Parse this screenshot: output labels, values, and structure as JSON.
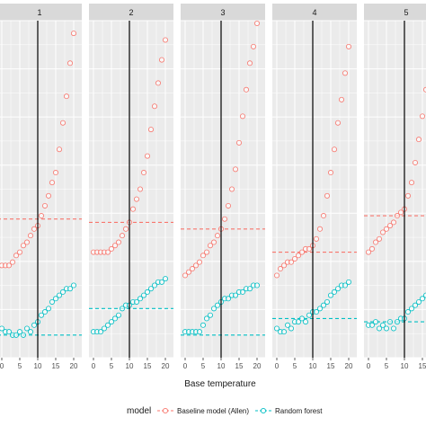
{
  "chart_data": {
    "type": "scatter",
    "xlabel": "Base temperature",
    "xlim": [
      0,
      21
    ],
    "x_ticks": [
      "0",
      "5",
      "10",
      "15",
      "20"
    ],
    "ylim": [
      0,
      1
    ],
    "legend": {
      "title": "model",
      "placement": "bottom"
    },
    "grid": true,
    "colors": {
      "baseline": "#f8766d",
      "random_forest": "#00bfc4",
      "strip_bg": "#d9d9d9",
      "panel_bg": "#ebebeb",
      "vline": "#000000"
    },
    "vline_x": 10,
    "series_names": [
      "Baseline model (Allen)",
      "Random forest"
    ],
    "facets": [
      {
        "label": "1",
        "baseline_hline": 0.41,
        "rf_hline": 0.06,
        "baseline": [
          [
            0,
            0.27
          ],
          [
            1,
            0.27
          ],
          [
            2,
            0.27
          ],
          [
            3,
            0.28
          ],
          [
            4,
            0.3
          ],
          [
            5,
            0.31
          ],
          [
            6,
            0.33
          ],
          [
            7,
            0.34
          ],
          [
            8,
            0.36
          ],
          [
            9,
            0.38
          ],
          [
            10,
            0.39
          ],
          [
            11,
            0.42
          ],
          [
            12,
            0.45
          ],
          [
            13,
            0.48
          ],
          [
            14,
            0.52
          ],
          [
            15,
            0.55
          ],
          [
            16,
            0.62
          ],
          [
            17,
            0.7
          ],
          [
            18,
            0.78
          ],
          [
            19,
            0.88
          ],
          [
            20,
            0.97
          ]
        ],
        "random_forest": [
          [
            0,
            0.08
          ],
          [
            1,
            0.07
          ],
          [
            2,
            0.07
          ],
          [
            3,
            0.06
          ],
          [
            4,
            0.06
          ],
          [
            5,
            0.07
          ],
          [
            6,
            0.06
          ],
          [
            7,
            0.08
          ],
          [
            8,
            0.07
          ],
          [
            9,
            0.09
          ],
          [
            10,
            0.1
          ],
          [
            11,
            0.12
          ],
          [
            12,
            0.13
          ],
          [
            13,
            0.14
          ],
          [
            14,
            0.16
          ],
          [
            15,
            0.17
          ],
          [
            16,
            0.18
          ],
          [
            17,
            0.19
          ],
          [
            18,
            0.2
          ],
          [
            19,
            0.2
          ],
          [
            20,
            0.21
          ]
        ]
      },
      {
        "label": "2",
        "baseline_hline": 0.4,
        "rf_hline": 0.14,
        "baseline": [
          [
            0,
            0.31
          ],
          [
            1,
            0.31
          ],
          [
            2,
            0.31
          ],
          [
            3,
            0.31
          ],
          [
            4,
            0.31
          ],
          [
            5,
            0.32
          ],
          [
            6,
            0.33
          ],
          [
            7,
            0.34
          ],
          [
            8,
            0.36
          ],
          [
            9,
            0.38
          ],
          [
            10,
            0.4
          ],
          [
            11,
            0.44
          ],
          [
            12,
            0.47
          ],
          [
            13,
            0.5
          ],
          [
            14,
            0.55
          ],
          [
            15,
            0.6
          ],
          [
            16,
            0.68
          ],
          [
            17,
            0.75
          ],
          [
            18,
            0.82
          ],
          [
            19,
            0.89
          ],
          [
            20,
            0.95
          ]
        ],
        "random_forest": [
          [
            0,
            0.07
          ],
          [
            1,
            0.07
          ],
          [
            2,
            0.07
          ],
          [
            3,
            0.08
          ],
          [
            4,
            0.09
          ],
          [
            5,
            0.1
          ],
          [
            6,
            0.11
          ],
          [
            7,
            0.12
          ],
          [
            8,
            0.14
          ],
          [
            9,
            0.15
          ],
          [
            10,
            0.15
          ],
          [
            11,
            0.16
          ],
          [
            12,
            0.16
          ],
          [
            13,
            0.17
          ],
          [
            14,
            0.18
          ],
          [
            15,
            0.19
          ],
          [
            16,
            0.2
          ],
          [
            17,
            0.21
          ],
          [
            18,
            0.22
          ],
          [
            19,
            0.22
          ],
          [
            20,
            0.23
          ]
        ]
      },
      {
        "label": "3",
        "baseline_hline": 0.38,
        "rf_hline": 0.06,
        "baseline": [
          [
            0,
            0.24
          ],
          [
            1,
            0.25
          ],
          [
            2,
            0.26
          ],
          [
            3,
            0.27
          ],
          [
            4,
            0.28
          ],
          [
            5,
            0.3
          ],
          [
            6,
            0.31
          ],
          [
            7,
            0.33
          ],
          [
            8,
            0.34
          ],
          [
            9,
            0.36
          ],
          [
            10,
            0.38
          ],
          [
            11,
            0.41
          ],
          [
            12,
            0.45
          ],
          [
            13,
            0.5
          ],
          [
            14,
            0.56
          ],
          [
            15,
            0.64
          ],
          [
            16,
            0.72
          ],
          [
            17,
            0.8
          ],
          [
            18,
            0.88
          ],
          [
            19,
            0.93
          ],
          [
            20,
            1.0
          ]
        ],
        "random_forest": [
          [
            0,
            0.07
          ],
          [
            1,
            0.07
          ],
          [
            2,
            0.07
          ],
          [
            3,
            0.07
          ],
          [
            4,
            0.07
          ],
          [
            5,
            0.09
          ],
          [
            6,
            0.11
          ],
          [
            7,
            0.12
          ],
          [
            8,
            0.14
          ],
          [
            9,
            0.15
          ],
          [
            10,
            0.16
          ],
          [
            11,
            0.17
          ],
          [
            12,
            0.17
          ],
          [
            13,
            0.18
          ],
          [
            14,
            0.18
          ],
          [
            15,
            0.19
          ],
          [
            16,
            0.19
          ],
          [
            17,
            0.2
          ],
          [
            18,
            0.2
          ],
          [
            19,
            0.21
          ],
          [
            20,
            0.21
          ]
        ]
      },
      {
        "label": "4",
        "baseline_hline": 0.31,
        "rf_hline": 0.11,
        "baseline": [
          [
            0,
            0.24
          ],
          [
            1,
            0.26
          ],
          [
            2,
            0.27
          ],
          [
            3,
            0.28
          ],
          [
            4,
            0.28
          ],
          [
            5,
            0.29
          ],
          [
            6,
            0.3
          ],
          [
            7,
            0.31
          ],
          [
            8,
            0.32
          ],
          [
            9,
            0.32
          ],
          [
            10,
            0.33
          ],
          [
            11,
            0.35
          ],
          [
            12,
            0.38
          ],
          [
            13,
            0.42
          ],
          [
            14,
            0.48
          ],
          [
            15,
            0.55
          ],
          [
            16,
            0.62
          ],
          [
            17,
            0.7
          ],
          [
            18,
            0.77
          ],
          [
            19,
            0.85
          ],
          [
            20,
            0.93
          ]
        ],
        "random_forest": [
          [
            0,
            0.08
          ],
          [
            1,
            0.07
          ],
          [
            2,
            0.07
          ],
          [
            3,
            0.09
          ],
          [
            4,
            0.08
          ],
          [
            5,
            0.1
          ],
          [
            6,
            0.1
          ],
          [
            7,
            0.11
          ],
          [
            8,
            0.1
          ],
          [
            9,
            0.12
          ],
          [
            10,
            0.13
          ],
          [
            11,
            0.13
          ],
          [
            12,
            0.14
          ],
          [
            13,
            0.15
          ],
          [
            14,
            0.16
          ],
          [
            15,
            0.18
          ],
          [
            16,
            0.19
          ],
          [
            17,
            0.2
          ],
          [
            18,
            0.21
          ],
          [
            19,
            0.21
          ],
          [
            20,
            0.22
          ]
        ]
      },
      {
        "label": "5",
        "baseline_hline": 0.42,
        "rf_hline": 0.1,
        "baseline": [
          [
            0,
            0.31
          ],
          [
            1,
            0.32
          ],
          [
            2,
            0.34
          ],
          [
            3,
            0.35
          ],
          [
            4,
            0.37
          ],
          [
            5,
            0.38
          ],
          [
            6,
            0.39
          ],
          [
            7,
            0.4
          ],
          [
            8,
            0.42
          ],
          [
            9,
            0.43
          ],
          [
            10,
            0.44
          ],
          [
            11,
            0.48
          ],
          [
            12,
            0.52
          ],
          [
            13,
            0.58
          ],
          [
            14,
            0.65
          ],
          [
            15,
            0.72
          ],
          [
            16,
            0.8
          ],
          [
            17,
            0.86
          ],
          [
            18,
            0.9
          ],
          [
            19,
            0.94
          ],
          [
            20,
            0.97
          ]
        ],
        "random_forest": [
          [
            0,
            0.09
          ],
          [
            1,
            0.09
          ],
          [
            2,
            0.1
          ],
          [
            3,
            0.08
          ],
          [
            4,
            0.09
          ],
          [
            5,
            0.08
          ],
          [
            6,
            0.1
          ],
          [
            7,
            0.08
          ],
          [
            8,
            0.1
          ],
          [
            9,
            0.11
          ],
          [
            10,
            0.11
          ],
          [
            11,
            0.13
          ],
          [
            12,
            0.14
          ],
          [
            13,
            0.15
          ],
          [
            14,
            0.16
          ],
          [
            15,
            0.17
          ],
          [
            16,
            0.18
          ],
          [
            17,
            0.19
          ],
          [
            18,
            0.2
          ],
          [
            19,
            0.2
          ],
          [
            20,
            0.21
          ]
        ]
      }
    ]
  }
}
